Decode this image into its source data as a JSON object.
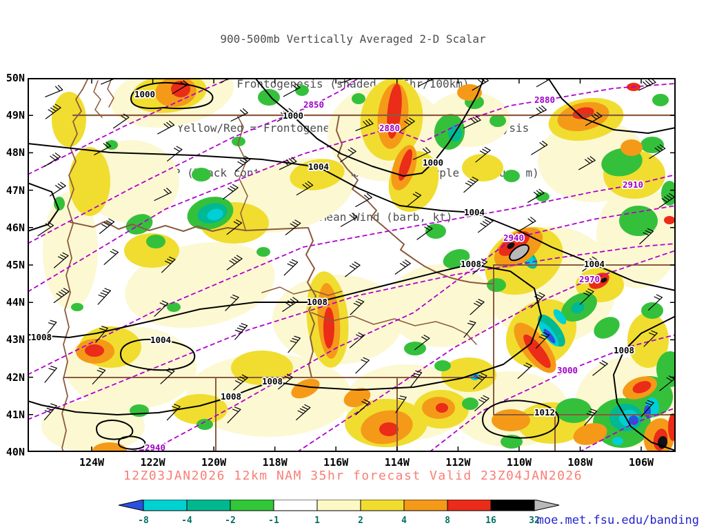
{
  "title": {
    "lines": [
      "900-500mb Vertically Averaged 2-D Scalar",
      "Frontogenesis (shaded, K/6hr/100km)",
      "Yellow/Red = Frontogenesis;  Green/Blue = Frontolysis",
      "MSLP (black contour, mb), 700mb height (purple contour, m) &",
      "900-500mb Mean Wind (barb, kt)"
    ]
  },
  "caption": "12Z03JAN2026 12km NAM 35hr forecast Valid 23Z04JAN2026",
  "credit": "moe.met.fsu.edu/banding",
  "axes": {
    "lat_labels": [
      "50N",
      "49N",
      "48N",
      "47N",
      "46N",
      "45N",
      "44N",
      "43N",
      "42N",
      "41N",
      "40N"
    ],
    "lon_labels": [
      "124W",
      "122W",
      "120W",
      "118W",
      "116W",
      "114W",
      "112W",
      "110W",
      "108W",
      "106W"
    ]
  },
  "colorbar": {
    "labels": [
      "-8",
      "-4",
      "-2",
      "-1",
      "1",
      "2",
      "4",
      "8",
      "16",
      "32"
    ],
    "cell_colors": [
      "#00d2d2",
      "#00b890",
      "#30c838",
      "#ffffff",
      "#fdf9c4",
      "#f0dd30",
      "#f59a18",
      "#ea2c18",
      "#000000"
    ],
    "left_arrow_color": "#2b50e0",
    "right_arrow_color": "#b9b9b9",
    "label_color": "#007060"
  },
  "contour_labels": {
    "mslp": [
      "1000",
      "1000",
      "1004",
      "1000",
      "1004",
      "1008",
      "1004",
      "1008",
      "1004",
      "1008",
      "1008",
      "1008",
      "1012",
      "1008"
    ],
    "height": [
      "2850",
      "2880",
      "2880",
      "2910",
      "2940",
      "2970",
      "3000",
      "2940"
    ]
  },
  "chart_data": {
    "type": "heatmap",
    "field": "900-500mb vertically averaged 2-D scalar frontogenesis (K/6hr/100km), shaded",
    "region": {
      "lat_range": [
        "40N",
        "50N"
      ],
      "lon_range": [
        "126W",
        "105W"
      ]
    },
    "x_axis": {
      "label": "longitude",
      "ticks": [
        "124W",
        "122W",
        "120W",
        "118W",
        "116W",
        "114W",
        "112W",
        "110W",
        "108W",
        "106W"
      ]
    },
    "y_axis": {
      "label": "latitude",
      "ticks": [
        "50N",
        "49N",
        "48N",
        "47N",
        "46N",
        "45N",
        "44N",
        "43N",
        "42N",
        "41N",
        "40N"
      ]
    },
    "shading_levels": [
      -8,
      -4,
      -2,
      -1,
      1,
      2,
      4,
      8,
      16,
      32
    ],
    "shading_colors": [
      "blue",
      "cyan",
      "teal-green",
      "green",
      "white",
      "pale-yellow",
      "yellow",
      "orange",
      "red",
      "black",
      "gray"
    ],
    "shading_meaning": "Yellow/Red = Frontogenesis; Green/Blue = Frontolysis",
    "mslp_contours_mb": [
      1000,
      1004,
      1008,
      1012
    ],
    "height_700mb_contours_m": [
      2850,
      2880,
      2910,
      2940,
      2970,
      3000
    ],
    "wind": "900-500mb mean wind barbs (kt), generally southwesterly 20-50 kt",
    "model": "12km NAM",
    "init_time": "12Z03JAN2026",
    "forecast_hour": "35hr",
    "valid_time": "23Z04JAN2026"
  }
}
